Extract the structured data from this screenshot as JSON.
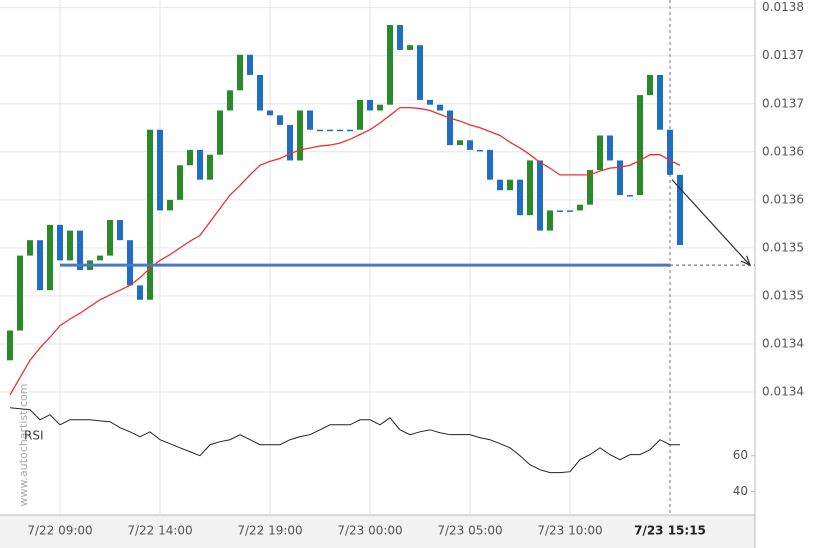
{
  "chart_data": {
    "type": "candlestick",
    "categories": [
      null,
      null,
      null,
      null,
      null,
      "7/22 09:00",
      null,
      null,
      null,
      null,
      null,
      null,
      null,
      null,
      null,
      "7/22 14:00",
      null,
      null,
      null,
      null,
      null,
      null,
      null,
      null,
      null,
      null,
      "7/22 19:00",
      null,
      null,
      null,
      null,
      null,
      null,
      null,
      null,
      null,
      "7/23 00:00",
      null,
      null,
      null,
      null,
      null,
      null,
      null,
      null,
      null,
      "7/23 05:00",
      null,
      null,
      null,
      null,
      null,
      null,
      null,
      null,
      null,
      "7/23 10:00",
      null,
      null,
      null,
      null,
      null,
      null,
      null,
      null,
      null,
      "7/23 15:15",
      null
    ],
    "open": [
      0.013413,
      0.013444,
      0.013522,
      0.013538,
      0.013486,
      0.013554,
      0.013517,
      0.013548,
      0.013507,
      0.013517,
      0.013522,
      0.013559,
      0.013538,
      0.013491,
      0.013476,
      0.013653,
      0.013569,
      0.01358,
      0.013616,
      0.013632,
      0.013601,
      0.013627,
      0.013673,
      0.013694,
      0.013731,
      0.01371,
      0.013673,
      0.013668,
      0.013658,
      0.013621,
      0.013673,
      0.013653,
      0.013653,
      0.013653,
      0.013653,
      0.013653,
      0.013684,
      0.013673,
      0.013679,
      0.013762,
      0.013736,
      0.013741,
      0.013684,
      0.013679,
      0.013673,
      0.013637,
      0.013642,
      0.013632,
      0.013632,
      0.013601,
      0.01359,
      0.013601,
      0.013564,
      0.013621,
      0.013548,
      0.013569,
      0.013569,
      0.013569,
      0.013575,
      0.013611,
      0.013647,
      0.013621,
      0.013585,
      0.013585,
      0.013689,
      0.01371,
      0.013653,
      0.013606
    ],
    "close": [
      0.013444,
      0.013522,
      0.013538,
      0.013486,
      0.013554,
      0.013517,
      0.013548,
      0.013507,
      0.013517,
      0.013522,
      0.013559,
      0.013538,
      0.013491,
      0.013476,
      0.013653,
      0.013569,
      0.01358,
      0.013616,
      0.013632,
      0.013601,
      0.013627,
      0.013673,
      0.013694,
      0.013731,
      0.01371,
      0.013673,
      0.013668,
      0.013658,
      0.013621,
      0.013673,
      0.013653,
      0.013653,
      0.013653,
      0.013653,
      0.013653,
      0.013684,
      0.013673,
      0.013679,
      0.013762,
      0.013736,
      0.013741,
      0.013684,
      0.013679,
      0.013673,
      0.013637,
      0.013642,
      0.013632,
      0.013632,
      0.013601,
      0.01359,
      0.013601,
      0.013564,
      0.013621,
      0.013548,
      0.013569,
      0.013569,
      0.013569,
      0.013575,
      0.013611,
      0.013647,
      0.013621,
      0.013585,
      0.013585,
      0.013689,
      0.01371,
      0.013653,
      0.013606,
      0.013533
    ],
    "up_color": "#2a8a2a",
    "down_color": "#1f6ec4",
    "moving_average": {
      "color": "#f03030",
      "values": [
        0.013377,
        0.013395,
        0.013413,
        0.013426,
        0.013437,
        0.013449,
        0.013456,
        0.013462,
        0.013469,
        0.013476,
        0.013481,
        0.013486,
        0.013491,
        0.013499,
        0.013509,
        0.013517,
        0.013523,
        0.01353,
        0.013537,
        0.013543,
        0.013557,
        0.013571,
        0.013585,
        0.013595,
        0.013606,
        0.013616,
        0.01362,
        0.013623,
        0.013628,
        0.013632,
        0.013634,
        0.013636,
        0.013637,
        0.013639,
        0.013643,
        0.013648,
        0.013653,
        0.01366,
        0.013668,
        0.013676,
        0.013676,
        0.013675,
        0.013673,
        0.013669,
        0.013665,
        0.013662,
        0.013658,
        0.013655,
        0.013651,
        0.013647,
        0.01364,
        0.013634,
        0.013627,
        0.013619,
        0.013613,
        0.013606,
        0.013606,
        0.013606,
        0.013606,
        0.01361,
        0.013613,
        0.013614,
        0.013616,
        0.013621,
        0.013627,
        0.013627,
        0.013621,
        0.013616
      ]
    },
    "support_level": {
      "color": "#4a78c8",
      "value": 0.013512
    },
    "forecast_from": 0.013601,
    "ylim": [
      0.013252,
      0.013788
    ],
    "yticks": [
      {
        "value": 0.01378,
        "label": "0.0138"
      },
      {
        "value": 0.01373,
        "label": "0.0137"
      },
      {
        "value": 0.01368,
        "label": "0.0137"
      },
      {
        "value": 0.01363,
        "label": "0.0136"
      },
      {
        "value": 0.01358,
        "label": "0.0136"
      },
      {
        "value": 0.01353,
        "label": "0.0135"
      },
      {
        "value": 0.01348,
        "label": "0.0135"
      },
      {
        "value": 0.01343,
        "label": "0.0134"
      },
      {
        "value": 0.01338,
        "label": "0.0134"
      }
    ],
    "rsi": {
      "label": "RSI",
      "color": "#222222",
      "ylim": [
        27,
        91
      ],
      "yticks": [
        60,
        40
      ],
      "values": [
        86.7,
        86.1,
        85.6,
        80,
        82.8,
        77.2,
        80,
        80,
        80,
        79.4,
        78.9,
        75.6,
        73.3,
        70.6,
        73.3,
        68.9,
        66.7,
        64.4,
        62.2,
        60,
        66.1,
        67.8,
        68.9,
        71.7,
        68.9,
        66.1,
        66.1,
        66.1,
        68.9,
        70.6,
        71.7,
        74.4,
        77.2,
        77.2,
        77.2,
        80,
        80,
        77.2,
        81.1,
        74.4,
        71.7,
        73.3,
        74.4,
        72.8,
        71.7,
        71.7,
        71.7,
        70,
        68.9,
        66.7,
        64.4,
        60,
        55,
        52.2,
        50.6,
        50.6,
        51.1,
        57.8,
        60.6,
        64.4,
        60.6,
        57.8,
        60.6,
        60.6,
        63.3,
        68.9,
        66.1,
        66.1
      ]
    },
    "watermark": "www.autochartist.com",
    "grid": true
  }
}
